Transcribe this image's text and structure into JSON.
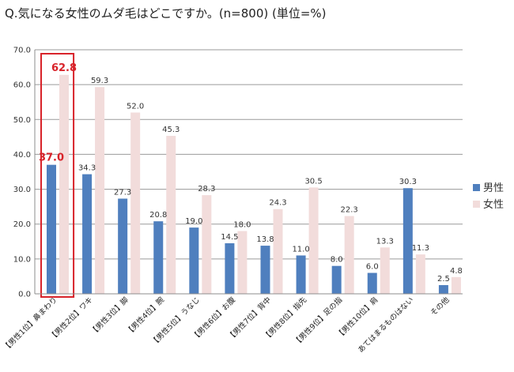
{
  "title": "Q.気になる女性のムダ毛はどこですか。(n=800) (単位=%)",
  "colors": {
    "male": "#4f7fbe",
    "female": "#f2dcdb",
    "highlight": "#d8232a",
    "grid": "#9a9a9a"
  },
  "chart_data": {
    "type": "bar",
    "title": "Q.気になる女性のムダ毛はどこですか。(n=800) (単位=%)",
    "xlabel": "",
    "ylabel": "",
    "ylim": [
      0,
      70
    ],
    "yticks": [
      "0.0",
      "10.0",
      "20.0",
      "30.0",
      "40.0",
      "50.0",
      "60.0",
      "70.0"
    ],
    "grid": true,
    "legend_position": "right",
    "categories": [
      "【男性1位】鼻まわり",
      "【男性2位】ワキ",
      "【男性3位】脚",
      "【男性4位】腕",
      "【男性5位】うなじ",
      "【男性6位】お腹",
      "【男性7位】背中",
      "【男性8位】指先",
      "【男性9位】足の指",
      "【男性10位】肩",
      "あてはまるものはない",
      "その他"
    ],
    "series": [
      {
        "name": "男性",
        "values": [
          37.0,
          34.3,
          27.3,
          20.8,
          19.0,
          14.5,
          13.8,
          11.0,
          8.0,
          6.0,
          30.3,
          2.5
        ],
        "labels": [
          "37.0",
          "34.3",
          "27.3",
          "20.8",
          "19.0",
          "14.5",
          "13.8",
          "11.0",
          "8.0",
          "6.0",
          "30.3",
          "2.5"
        ]
      },
      {
        "name": "女性",
        "values": [
          62.8,
          59.3,
          52.0,
          45.3,
          28.3,
          18.0,
          24.3,
          30.5,
          22.3,
          13.3,
          11.3,
          4.8
        ],
        "labels": [
          "62.8",
          "59.3",
          "52.0",
          "45.3",
          "28.3",
          "18.0",
          "24.3",
          "30.5",
          "22.3",
          "13.3",
          "11.3",
          "4.8"
        ]
      }
    ],
    "highlighted_category": "【男性1位】鼻まわり"
  }
}
